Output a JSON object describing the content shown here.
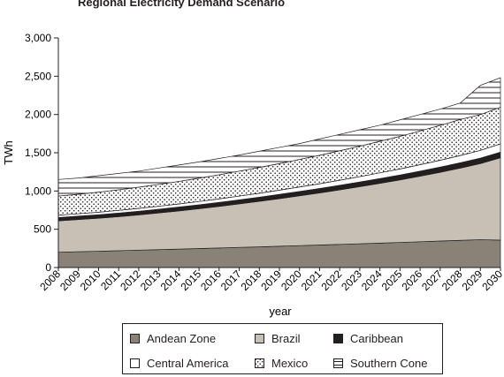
{
  "chart_data": {
    "type": "area",
    "stacked": true,
    "title": "Regional Electricity Demand Scenario",
    "xlabel": "year",
    "ylabel": "TWh",
    "ylim": [
      0,
      3000
    ],
    "yticks": [
      0,
      500,
      1000,
      1500,
      2000,
      2500,
      3000
    ],
    "ytick_labels": [
      "0",
      "500",
      "1,000",
      "1,500",
      "2,000",
      "2,500",
      "3,000"
    ],
    "x": [
      "2008",
      "2009",
      "2010",
      "2011",
      "2012",
      "2013",
      "2014",
      "2015",
      "2016",
      "2017",
      "2018",
      "2019",
      "2020",
      "2021",
      "2022",
      "2023",
      "2024",
      "2025",
      "2026",
      "2027",
      "2028",
      "2029",
      "2030"
    ],
    "grid": false,
    "legend_position": "bottom",
    "series": [
      {
        "name": "Andean Zone",
        "color": "#8b8277",
        "pattern": "solid",
        "values": [
          200,
          207,
          213,
          220,
          227,
          234,
          241,
          248,
          255,
          263,
          270,
          278,
          286,
          294,
          302,
          311,
          319,
          328,
          337,
          346,
          355,
          364,
          358
        ]
      },
      {
        "name": "Brazil",
        "color": "#c8bfb5",
        "pattern": "solid",
        "values": [
          410,
          420,
          431,
          445,
          461,
          479,
          499,
          521,
          544,
          569,
          595,
          622,
          651,
          681,
          713,
          746,
          781,
          817,
          857,
          899,
          944,
          994,
          1076
        ]
      },
      {
        "name": "Caribbean",
        "color": "#231f20",
        "pattern": "solid",
        "values": [
          44,
          45,
          46,
          47,
          48,
          49,
          50,
          51,
          52,
          53,
          54,
          56,
          57,
          58,
          60,
          61,
          63,
          64,
          66,
          68,
          70,
          72,
          74
        ]
      },
      {
        "name": "Central America",
        "color": "#ffffff",
        "pattern": "solid",
        "values": [
          30,
          31,
          33,
          35,
          37,
          39,
          41,
          43,
          46,
          49,
          52,
          55,
          59,
          62,
          66,
          70,
          75,
          79,
          84,
          89,
          95,
          101,
          107
        ]
      },
      {
        "name": "Mexico",
        "color": "#ffffff",
        "pattern": "dots",
        "values": [
          250,
          255,
          262,
          269,
          277,
          286,
          295,
          305,
          315,
          326,
          337,
          348,
          360,
          372,
          385,
          398,
          412,
          426,
          441,
          456,
          471,
          467,
          480
        ]
      },
      {
        "name": "Southern Cone",
        "color": "#ffffff",
        "pattern": "hlines",
        "values": [
          216,
          212,
          215,
          214,
          210,
          213,
          214,
          212,
          213,
          210,
          212,
          211,
          207,
          213,
          214,
          214,
          210,
          216,
          215,
          212,
          215,
          382,
          385
        ]
      }
    ]
  }
}
